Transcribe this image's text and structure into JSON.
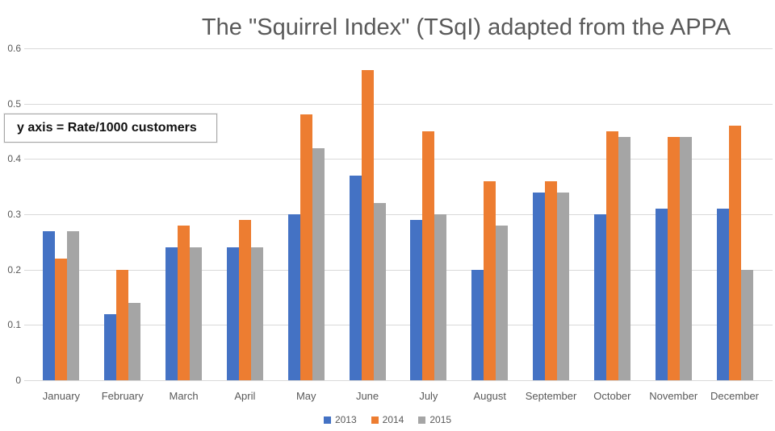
{
  "chart_data": {
    "type": "bar",
    "title": "The \"Squirrel Index\" (TSqI) adapted from the APPA",
    "annotation": "y axis = Rate/1000 customers",
    "categories": [
      "January",
      "February",
      "March",
      "April",
      "May",
      "June",
      "July",
      "August",
      "September",
      "October",
      "November",
      "December"
    ],
    "series": [
      {
        "name": "2013",
        "color": "#4472C4",
        "values": [
          0.27,
          0.12,
          0.24,
          0.24,
          0.3,
          0.37,
          0.29,
          0.2,
          0.34,
          0.3,
          0.31,
          0.31
        ]
      },
      {
        "name": "2014",
        "color": "#ED7D31",
        "values": [
          0.22,
          0.2,
          0.28,
          0.29,
          0.48,
          0.56,
          0.45,
          0.36,
          0.36,
          0.45,
          0.44,
          0.46
        ]
      },
      {
        "name": "2015",
        "color": "#A5A5A5",
        "values": [
          0.27,
          0.14,
          0.24,
          0.24,
          0.42,
          0.32,
          0.3,
          0.28,
          0.34,
          0.44,
          0.44,
          0.2
        ]
      }
    ],
    "ylim": [
      0,
      0.6
    ],
    "yticks": [
      {
        "value": 0,
        "label": "0"
      },
      {
        "value": 0.1,
        "label": "0.1"
      },
      {
        "value": 0.2,
        "label": "0.2"
      },
      {
        "value": 0.3,
        "label": "0.3"
      },
      {
        "value": 0.4,
        "label": "0.4"
      },
      {
        "value": 0.5,
        "label": "0.5"
      },
      {
        "value": 0.6,
        "label": "0.6"
      }
    ],
    "grid": true,
    "legend_position": "bottom",
    "colors": {
      "gridline": "#D9D9D9",
      "axis_text": "#595959",
      "title_text": "#595959"
    }
  }
}
